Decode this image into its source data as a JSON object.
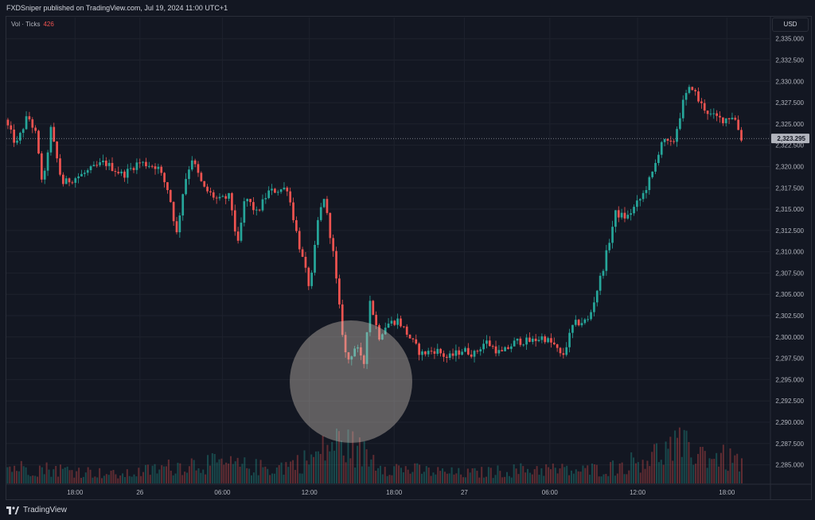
{
  "header": {
    "published_text": "FXDSniper published on TradingView.com, Jul 19, 2024 11:00 UTC+1"
  },
  "volume_legend": {
    "label": "Vol · Ticks",
    "value": "426"
  },
  "price_axis": {
    "currency": "USD",
    "current_price_label": "2,323.295",
    "current_price": 2323.295,
    "current_price_color": "#b2b5be"
  },
  "footer": {
    "brand": "TradingView"
  },
  "colors": {
    "background": "#131722",
    "up": "#26a69a",
    "down": "#ef5350",
    "grid": "#1e222d",
    "axis_text": "#b2b5be"
  },
  "chart_data": {
    "type": "candlestick",
    "title": "",
    "ylim": [
      2283,
      2336
    ],
    "y_ticks": [
      {
        "value": 2335,
        "label": "2,335.000"
      },
      {
        "value": 2332.5,
        "label": "2,332.500"
      },
      {
        "value": 2330,
        "label": "2,330.000"
      },
      {
        "value": 2327.5,
        "label": "2,327.500"
      },
      {
        "value": 2325,
        "label": "2,325.000"
      },
      {
        "value": 2322.5,
        "label": "2,322.500"
      },
      {
        "value": 2320,
        "label": "2,320.000"
      },
      {
        "value": 2317.5,
        "label": "2,317.500"
      },
      {
        "value": 2315,
        "label": "2,315.000"
      },
      {
        "value": 2312.5,
        "label": "2,312.500"
      },
      {
        "value": 2310,
        "label": "2,310.000"
      },
      {
        "value": 2307.5,
        "label": "2,307.500"
      },
      {
        "value": 2305,
        "label": "2,305.000"
      },
      {
        "value": 2302.5,
        "label": "2,302.500"
      },
      {
        "value": 2300,
        "label": "2,300.000"
      },
      {
        "value": 2297.5,
        "label": "2,297.500"
      },
      {
        "value": 2295,
        "label": "2,295.000"
      },
      {
        "value": 2292.5,
        "label": "2,292.500"
      },
      {
        "value": 2290,
        "label": "2,290.000"
      },
      {
        "value": 2287.5,
        "label": "2,287.500"
      },
      {
        "value": 2285,
        "label": "2,285.000"
      }
    ],
    "x_ticks": [
      {
        "t": 0.09,
        "label": "18:00"
      },
      {
        "t": 0.175,
        "label": "26"
      },
      {
        "t": 0.283,
        "label": "06:00"
      },
      {
        "t": 0.397,
        "label": "12:00"
      },
      {
        "t": 0.508,
        "label": "18:00"
      },
      {
        "t": 0.6,
        "label": "27"
      },
      {
        "t": 0.712,
        "label": "06:00"
      },
      {
        "t": 0.827,
        "label": "12:00"
      },
      {
        "t": 0.944,
        "label": "18:00"
      }
    ],
    "price_path": [
      [
        0.0,
        2325.5
      ],
      [
        0.015,
        2322.5
      ],
      [
        0.03,
        2326.0
      ],
      [
        0.04,
        2324.0
      ],
      [
        0.05,
        2317.5
      ],
      [
        0.06,
        2324.5
      ],
      [
        0.075,
        2318.0
      ],
      [
        0.1,
        2319.0
      ],
      [
        0.13,
        2320.5
      ],
      [
        0.155,
        2319.0
      ],
      [
        0.175,
        2320.5
      ],
      [
        0.2,
        2320.0
      ],
      [
        0.215,
        2317.0
      ],
      [
        0.225,
        2312.0
      ],
      [
        0.235,
        2318.0
      ],
      [
        0.245,
        2321.0
      ],
      [
        0.26,
        2317.5
      ],
      [
        0.28,
        2316.0
      ],
      [
        0.295,
        2316.5
      ],
      [
        0.305,
        2310.5
      ],
      [
        0.315,
        2316.5
      ],
      [
        0.33,
        2314.5
      ],
      [
        0.345,
        2317.0
      ],
      [
        0.37,
        2317.5
      ],
      [
        0.385,
        2311.0
      ],
      [
        0.4,
        2305.5
      ],
      [
        0.41,
        2313.5
      ],
      [
        0.418,
        2316.5
      ],
      [
        0.43,
        2310.0
      ],
      [
        0.44,
        2302.0
      ],
      [
        0.448,
        2297.0
      ],
      [
        0.46,
        2299.0
      ],
      [
        0.47,
        2296.5
      ],
      [
        0.478,
        2304.5
      ],
      [
        0.49,
        2300.0
      ],
      [
        0.5,
        2301.5
      ],
      [
        0.515,
        2302.0
      ],
      [
        0.53,
        2300.0
      ],
      [
        0.545,
        2298.0
      ],
      [
        0.565,
        2298.5
      ],
      [
        0.58,
        2297.5
      ],
      [
        0.6,
        2298.5
      ],
      [
        0.615,
        2298.0
      ],
      [
        0.63,
        2299.5
      ],
      [
        0.65,
        2298.0
      ],
      [
        0.67,
        2299.5
      ],
      [
        0.69,
        2299.5
      ],
      [
        0.705,
        2300.0
      ],
      [
        0.72,
        2299.0
      ],
      [
        0.73,
        2297.5
      ],
      [
        0.745,
        2301.5
      ],
      [
        0.765,
        2302.0
      ],
      [
        0.785,
        2308.5
      ],
      [
        0.8,
        2314.5
      ],
      [
        0.815,
        2314.0
      ],
      [
        0.835,
        2316.5
      ],
      [
        0.85,
        2319.5
      ],
      [
        0.86,
        2323.0
      ],
      [
        0.875,
        2322.5
      ],
      [
        0.89,
        2328.0
      ],
      [
        0.9,
        2329.5
      ],
      [
        0.91,
        2327.5
      ],
      [
        0.925,
        2326.0
      ],
      [
        0.94,
        2325.5
      ],
      [
        0.955,
        2326.0
      ],
      [
        0.965,
        2323.3
      ]
    ],
    "volume_max": 100,
    "volume_profile": [
      [
        0.0,
        20
      ],
      [
        0.05,
        18
      ],
      [
        0.1,
        15
      ],
      [
        0.15,
        10
      ],
      [
        0.2,
        18
      ],
      [
        0.25,
        25
      ],
      [
        0.3,
        22
      ],
      [
        0.35,
        18
      ],
      [
        0.4,
        30
      ],
      [
        0.43,
        50
      ],
      [
        0.45,
        45
      ],
      [
        0.5,
        20
      ],
      [
        0.55,
        15
      ],
      [
        0.6,
        12
      ],
      [
        0.65,
        15
      ],
      [
        0.7,
        18
      ],
      [
        0.75,
        15
      ],
      [
        0.8,
        20
      ],
      [
        0.85,
        35
      ],
      [
        0.88,
        45
      ],
      [
        0.92,
        35
      ],
      [
        0.965,
        25
      ]
    ]
  }
}
